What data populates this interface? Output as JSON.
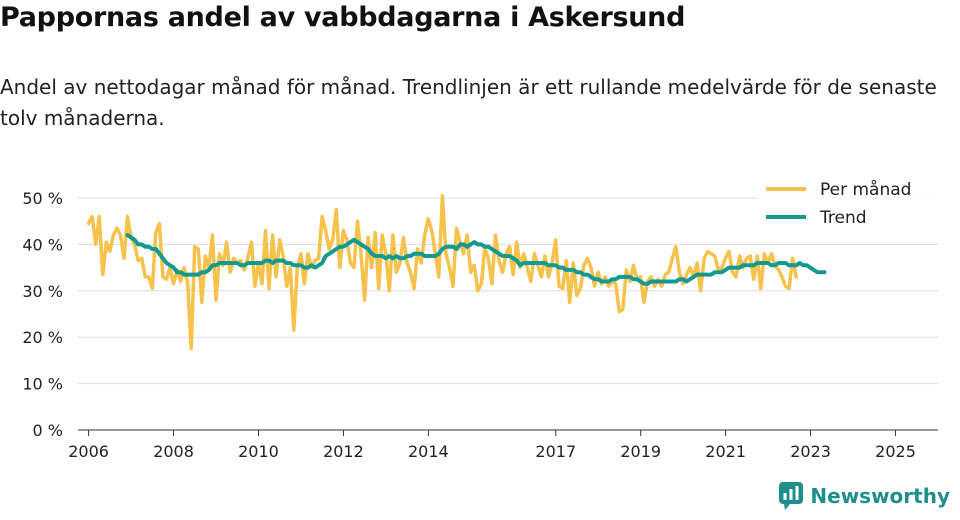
{
  "title": "Pappornas andel av vabbdagarna i Askersund",
  "subtitle": "Andel av nettodagar månad för månad. Trendlinjen är ett rullande medelvärde för de senaste tolv månaderna.",
  "brand": {
    "name": "Newsworthy",
    "icon": "newsworthy-logo-icon"
  },
  "colors": {
    "monthly": "#f6c24c",
    "trend": "#13998f",
    "grid": "#dddddd",
    "brand": "#1f8f8c"
  },
  "chart_data": {
    "type": "line",
    "title": "Pappornas andel av vabbdagarna i Askersund",
    "xlabel": "",
    "ylabel": "",
    "ylim": [
      0,
      50
    ],
    "xlim": [
      2005.75,
      2026.0
    ],
    "y_ticks": [
      0,
      10,
      20,
      30,
      40,
      50
    ],
    "y_tick_labels": [
      "0 %",
      "10 %",
      "20 %",
      "30 %",
      "40 %",
      "50 %"
    ],
    "x_ticks": [
      2006,
      2008,
      2010,
      2012,
      2014,
      2017,
      2019,
      2021,
      2023,
      2025
    ],
    "x_tick_labels": [
      "2006",
      "2008",
      "2010",
      "2012",
      "2014",
      "2017",
      "2019",
      "2021",
      "2023",
      "2025"
    ],
    "legend_position": "top-right",
    "series": [
      {
        "name": "Per månad",
        "x_start": 2006.0,
        "x_step": 0.0833,
        "values": [
          44.5,
          46,
          40,
          46,
          33.5,
          40.5,
          38.5,
          42,
          43.5,
          42,
          37,
          46,
          41.5,
          40,
          36.5,
          37,
          33,
          33,
          30.5,
          42.5,
          44.5,
          33,
          32.5,
          35,
          31.5,
          34.5,
          32,
          35,
          31.5,
          17.5,
          39.5,
          39,
          27.5,
          37.5,
          35,
          42,
          28,
          38,
          35.5,
          40.5,
          34,
          37,
          36,
          36.5,
          34.5,
          37,
          40.5,
          31,
          36,
          31.5,
          43,
          30.5,
          42,
          33,
          41,
          37.5,
          31,
          35,
          21.5,
          35,
          38,
          31.5,
          38,
          35,
          36.5,
          37,
          46,
          43,
          39,
          41,
          47.5,
          35,
          43,
          41,
          36,
          35,
          45,
          38,
          28,
          41.5,
          35,
          42.5,
          30.5,
          42,
          38,
          30,
          42,
          34,
          36,
          41.5,
          36,
          34,
          30.5,
          39,
          36,
          42,
          45.5,
          43,
          38,
          33,
          50.5,
          38,
          35,
          31,
          43.5,
          40.5,
          38,
          42,
          34,
          35.5,
          30,
          31.5,
          39,
          37,
          31.5,
          42,
          36.5,
          34,
          38,
          39.5,
          33.5,
          40.5,
          35,
          38,
          35,
          32,
          38,
          35.5,
          33,
          37.5,
          33,
          36,
          41,
          31,
          30.5,
          36.5,
          27.5,
          36,
          29,
          30.5,
          35.5,
          37,
          35,
          31,
          34,
          31.5,
          33,
          31,
          32,
          31.5,
          25.5,
          26,
          34.5,
          32,
          35.5,
          32.5,
          33,
          27.5,
          32,
          33,
          31,
          32.5,
          31,
          33.5,
          34,
          37,
          39.5,
          34,
          31.5,
          33.5,
          35,
          33,
          36,
          30,
          37,
          38.5,
          38,
          37.5,
          34.5,
          35,
          37,
          38.5,
          34,
          33,
          37.5,
          35,
          37,
          37.5,
          32.5,
          37.5,
          30.5,
          38,
          36,
          38,
          35.5,
          34.5,
          33,
          31,
          30.5,
          37,
          33
        ]
      },
      {
        "name": "Trend",
        "x_start": 2006.917,
        "x_step": 0.0833,
        "values": [
          42,
          41.5,
          41,
          40,
          40,
          39.5,
          39.5,
          39,
          39,
          38,
          37,
          36,
          35.5,
          35,
          34,
          34,
          33.5,
          33.5,
          33.5,
          33.5,
          33.5,
          34,
          34,
          34.5,
          35.5,
          35.5,
          36,
          36,
          36,
          36,
          36,
          36,
          35.5,
          35.5,
          36,
          36,
          36,
          36,
          36,
          36.5,
          36.5,
          36,
          36.5,
          36.5,
          36.5,
          36,
          36,
          35.5,
          35.5,
          35.5,
          35,
          35,
          35.5,
          35,
          35.5,
          36,
          37.5,
          38,
          38.5,
          39,
          39.5,
          39.5,
          40,
          40.5,
          41,
          40.5,
          40,
          39.5,
          39,
          38,
          37.5,
          37.5,
          37.5,
          37,
          37.5,
          37,
          37.5,
          37,
          37,
          37.5,
          37.5,
          38,
          38,
          38,
          37.5,
          37.5,
          37.5,
          37.5,
          38,
          39,
          39.5,
          39.5,
          39.5,
          39,
          40,
          40,
          39.5,
          40,
          40.5,
          40,
          40,
          39.5,
          39.5,
          39,
          38.5,
          38,
          37.5,
          37.5,
          37.5,
          37,
          36.5,
          35.5,
          36,
          36,
          36,
          36,
          36,
          36,
          36,
          35.5,
          35.5,
          35.5,
          35,
          35,
          34.5,
          34.5,
          34.5,
          34,
          34,
          33.5,
          33.5,
          33,
          32.5,
          32.5,
          32,
          32,
          32,
          32.5,
          32.5,
          33,
          33,
          33,
          33,
          32.5,
          32.5,
          32,
          31.5,
          31.5,
          32,
          32,
          32,
          32,
          32,
          32,
          32,
          32,
          32.5,
          32.5,
          32,
          32.5,
          33,
          33.5,
          33.5,
          33.5,
          33.5,
          33.5,
          34,
          34,
          34,
          34.5,
          35,
          35,
          35,
          35,
          35.5,
          35.5,
          35.5,
          35.5,
          36,
          36,
          36,
          36,
          35.5,
          35.5,
          36,
          36,
          36,
          35.5,
          35.5,
          35.5,
          36,
          35.5,
          35.5,
          35,
          34.5,
          34,
          34,
          34
        ]
      }
    ]
  }
}
